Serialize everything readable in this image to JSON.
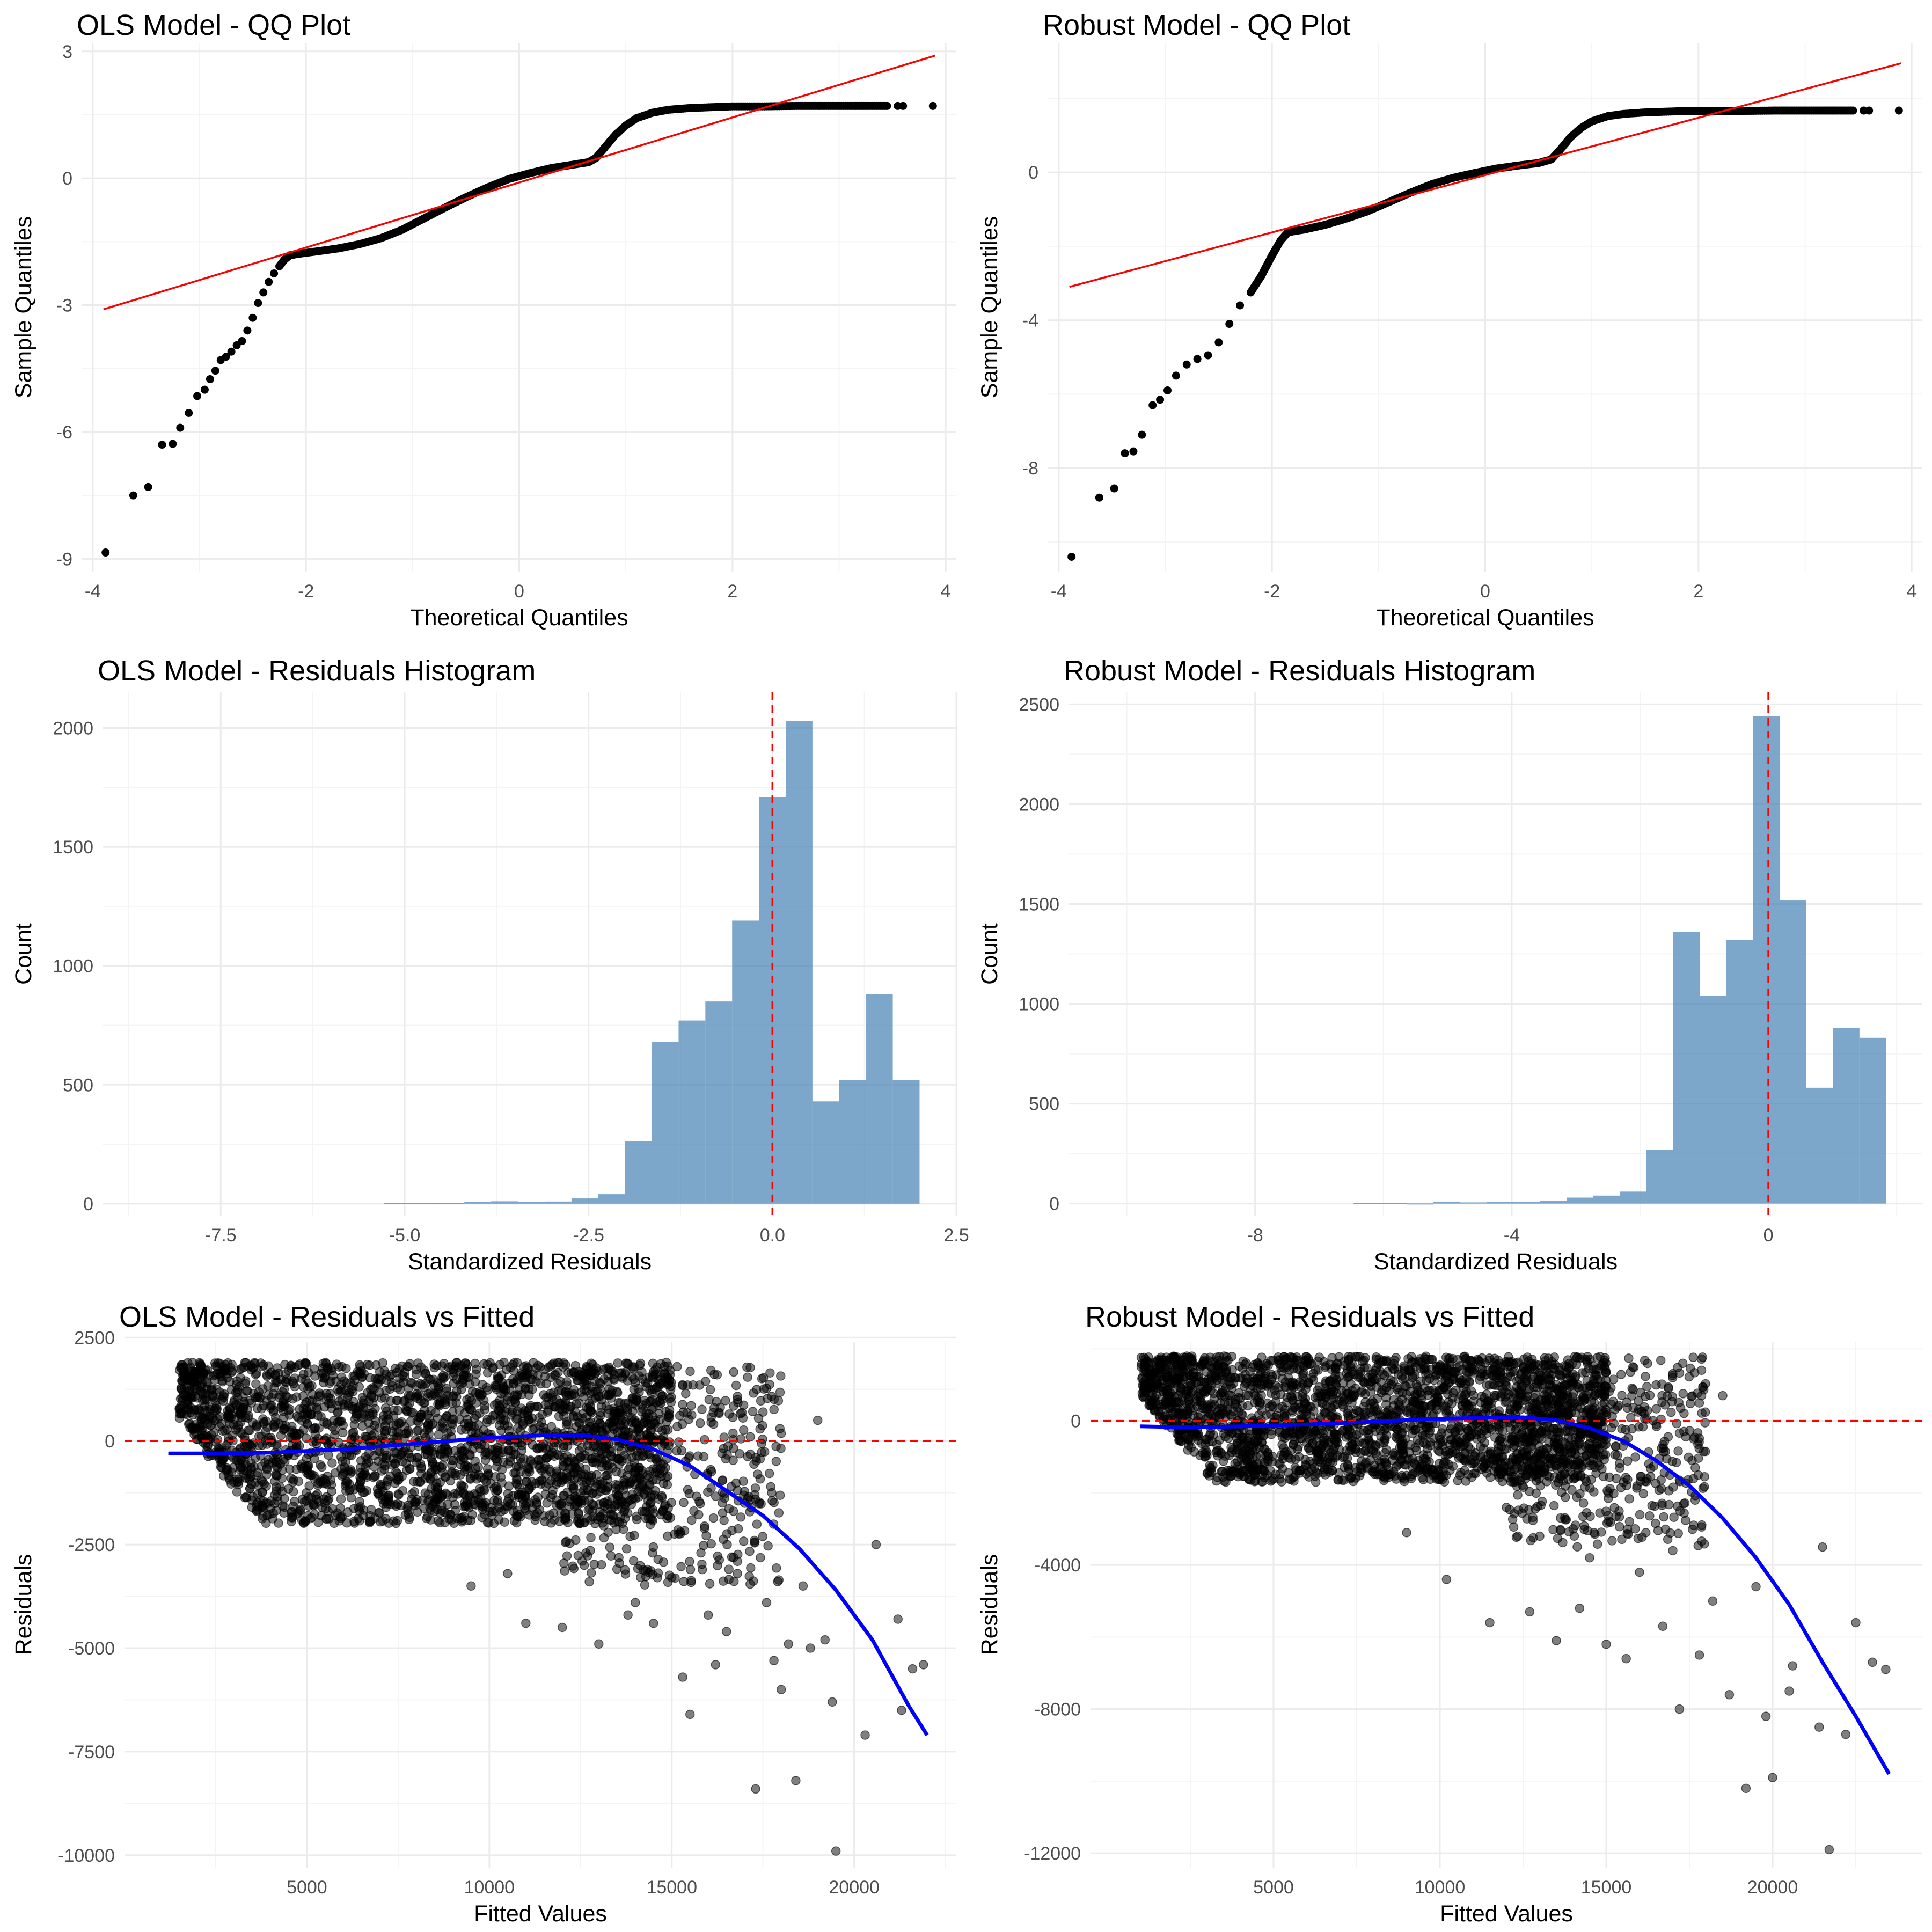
{
  "colors": {
    "background": "#ffffff",
    "grid_major": "#ebebeb",
    "grid_minor": "#f4f4f4",
    "points": "#000000",
    "reference_line": "#ff0000",
    "histogram_fill": "#4682b4",
    "smooth_line": "#0000ff"
  },
  "chart_data": [
    {
      "id": "ols_qq",
      "type": "scatter",
      "title": "OLS Model - QQ Plot",
      "xlabel": "Theoretical Quantiles",
      "ylabel": "Sample Quantiles",
      "xlim": [
        -4.1,
        4.1
      ],
      "ylim": [
        -9.3,
        3.2
      ],
      "x_ticks": [
        -4,
        -2,
        0,
        2,
        4
      ],
      "x_tick_labels": [
        "-4",
        "-2",
        "0",
        "2",
        "4"
      ],
      "y_ticks": [
        -9,
        -6,
        -3,
        0,
        3
      ],
      "y_tick_labels": [
        "-9",
        "-6",
        "-3",
        "0",
        "3"
      ],
      "reference_line": {
        "x": [
          -3.9,
          3.9
        ],
        "y": [
          -3.1,
          2.9
        ],
        "color": "#ff0000"
      },
      "points": [
        [
          -3.88,
          -8.85
        ],
        [
          -3.62,
          -7.5
        ],
        [
          -3.48,
          -7.3
        ],
        [
          -3.35,
          -6.3
        ],
        [
          -3.25,
          -6.28
        ],
        [
          -3.18,
          -5.9
        ],
        [
          -3.1,
          -5.55
        ],
        [
          -3.02,
          -5.15
        ],
        [
          -2.95,
          -5.0
        ],
        [
          -2.9,
          -4.75
        ],
        [
          -2.85,
          -4.55
        ],
        [
          -2.8,
          -4.3
        ],
        [
          -2.75,
          -4.22
        ],
        [
          -2.7,
          -4.1
        ],
        [
          -2.65,
          -3.95
        ],
        [
          -2.6,
          -3.85
        ],
        [
          -2.55,
          -3.6
        ],
        [
          -2.5,
          -3.3
        ],
        [
          -2.45,
          -2.95
        ],
        [
          -2.4,
          -2.7
        ],
        [
          -2.35,
          -2.45
        ],
        [
          -2.3,
          -2.25
        ],
        [
          -2.25,
          -2.08
        ],
        [
          -2.2,
          -1.92
        ],
        [
          -2.15,
          -1.82
        ],
        [
          -2.05,
          -1.78
        ],
        [
          -1.9,
          -1.73
        ],
        [
          -1.7,
          -1.66
        ],
        [
          -1.5,
          -1.56
        ],
        [
          -1.3,
          -1.42
        ],
        [
          -1.1,
          -1.22
        ],
        [
          -0.9,
          -0.96
        ],
        [
          -0.7,
          -0.7
        ],
        [
          -0.5,
          -0.45
        ],
        [
          -0.3,
          -0.22
        ],
        [
          -0.1,
          -0.02
        ],
        [
          0.1,
          0.12
        ],
        [
          0.3,
          0.24
        ],
        [
          0.5,
          0.32
        ],
        [
          0.65,
          0.38
        ],
        [
          0.72,
          0.48
        ],
        [
          0.8,
          0.72
        ],
        [
          0.9,
          1.02
        ],
        [
          1.0,
          1.25
        ],
        [
          1.1,
          1.42
        ],
        [
          1.25,
          1.55
        ],
        [
          1.4,
          1.62
        ],
        [
          1.6,
          1.66
        ],
        [
          1.8,
          1.68
        ],
        [
          2.0,
          1.7
        ],
        [
          2.3,
          1.7
        ],
        [
          2.6,
          1.71
        ],
        [
          2.9,
          1.71
        ],
        [
          3.1,
          1.71
        ],
        [
          3.25,
          1.71
        ],
        [
          3.35,
          1.71
        ],
        [
          3.45,
          1.71
        ],
        [
          3.55,
          1.71
        ],
        [
          3.6,
          1.71
        ],
        [
          3.88,
          1.71
        ]
      ]
    },
    {
      "id": "robust_qq",
      "type": "scatter",
      "title": "Robust Model - QQ Plot",
      "xlabel": "Theoretical Quantiles",
      "ylabel": "Sample Quantiles",
      "xlim": [
        -4.1,
        4.1
      ],
      "ylim": [
        -10.8,
        3.5
      ],
      "x_ticks": [
        -4,
        -2,
        0,
        2,
        4
      ],
      "x_tick_labels": [
        "-4",
        "-2",
        "0",
        "2",
        "4"
      ],
      "y_ticks": [
        -8,
        -4,
        0
      ],
      "y_tick_labels": [
        "-8",
        "-4",
        "0"
      ],
      "reference_line": {
        "x": [
          -3.9,
          3.9
        ],
        "y": [
          -3.1,
          2.95
        ],
        "color": "#ff0000"
      },
      "points": [
        [
          -3.88,
          -10.4
        ],
        [
          -3.62,
          -8.8
        ],
        [
          -3.48,
          -8.55
        ],
        [
          -3.38,
          -7.6
        ],
        [
          -3.3,
          -7.55
        ],
        [
          -3.22,
          -7.1
        ],
        [
          -3.12,
          -6.3
        ],
        [
          -3.05,
          -6.15
        ],
        [
          -2.98,
          -5.9
        ],
        [
          -2.9,
          -5.5
        ],
        [
          -2.8,
          -5.2
        ],
        [
          -2.7,
          -5.05
        ],
        [
          -2.6,
          -4.95
        ],
        [
          -2.5,
          -4.6
        ],
        [
          -2.4,
          -4.1
        ],
        [
          -2.3,
          -3.6
        ],
        [
          -2.2,
          -3.25
        ],
        [
          -2.1,
          -2.8
        ],
        [
          -2.0,
          -2.25
        ],
        [
          -1.92,
          -1.85
        ],
        [
          -1.85,
          -1.62
        ],
        [
          -1.7,
          -1.55
        ],
        [
          -1.5,
          -1.42
        ],
        [
          -1.3,
          -1.25
        ],
        [
          -1.1,
          -1.05
        ],
        [
          -0.9,
          -0.8
        ],
        [
          -0.7,
          -0.55
        ],
        [
          -0.5,
          -0.32
        ],
        [
          -0.3,
          -0.15
        ],
        [
          -0.1,
          -0.02
        ],
        [
          0.1,
          0.1
        ],
        [
          0.3,
          0.18
        ],
        [
          0.5,
          0.25
        ],
        [
          0.62,
          0.35
        ],
        [
          0.7,
          0.6
        ],
        [
          0.8,
          0.95
        ],
        [
          0.9,
          1.2
        ],
        [
          1.0,
          1.38
        ],
        [
          1.15,
          1.52
        ],
        [
          1.3,
          1.58
        ],
        [
          1.5,
          1.62
        ],
        [
          1.8,
          1.65
        ],
        [
          2.1,
          1.66
        ],
        [
          2.4,
          1.66
        ],
        [
          2.7,
          1.67
        ],
        [
          3.0,
          1.67
        ],
        [
          3.2,
          1.67
        ],
        [
          3.35,
          1.67
        ],
        [
          3.45,
          1.67
        ],
        [
          3.55,
          1.67
        ],
        [
          3.6,
          1.67
        ],
        [
          3.88,
          1.67
        ]
      ]
    },
    {
      "id": "ols_hist",
      "type": "bar",
      "title": "OLS Model - Residuals Histogram",
      "xlabel": "Standardized Residuals",
      "ylabel": "Count",
      "xlim": [
        -9.1,
        2.5
      ],
      "ylim": [
        -50,
        2150
      ],
      "x_ticks": [
        -7.5,
        -5.0,
        -2.5,
        0.0,
        2.5
      ],
      "x_tick_labels": [
        "-7.5",
        "-5.0",
        "-2.5",
        "0.0",
        "2.5"
      ],
      "y_ticks": [
        0,
        500,
        1000,
        1500,
        2000
      ],
      "y_tick_labels": [
        "0",
        "500",
        "1000",
        "1500",
        "2000"
      ],
      "bin_width": 0.364,
      "bin_starts": [
        -5.28,
        -4.916,
        -4.552,
        -4.188,
        -3.824,
        -3.46,
        -3.096,
        -2.732,
        -2.368,
        -2.004,
        -1.64,
        -1.276,
        -0.912,
        -0.548,
        -0.184,
        0.18,
        0.544,
        0.908,
        1.272,
        1.636
      ],
      "values": [
        2,
        2,
        3,
        8,
        10,
        7,
        9,
        22,
        40,
        263,
        680,
        770,
        850,
        1190,
        1710,
        2030,
        430,
        520,
        880,
        520
      ],
      "vline": {
        "x": 0,
        "color": "#ff0000",
        "style": "dashed"
      }
    },
    {
      "id": "robust_hist",
      "type": "bar",
      "title": "Robust Model - Residuals Histogram",
      "xlabel": "Standardized Residuals",
      "ylabel": "Count",
      "xlim": [
        -10.9,
        2.4
      ],
      "ylim": [
        -60,
        2560
      ],
      "x_ticks": [
        -8,
        -4,
        0
      ],
      "x_tick_labels": [
        "-8",
        "-4",
        "0"
      ],
      "y_ticks": [
        0,
        500,
        1000,
        1500,
        2000,
        2500
      ],
      "y_tick_labels": [
        "0",
        "500",
        "1000",
        "1500",
        "2000",
        "2500"
      ],
      "bin_width": 0.415,
      "bin_starts": [
        -6.465,
        -6.05,
        -5.635,
        -5.22,
        -4.805,
        -4.39,
        -3.975,
        -3.56,
        -3.145,
        -2.73,
        -2.315,
        -1.9,
        -1.485,
        -1.07,
        -0.655,
        -0.24,
        0.175,
        0.59,
        1.005,
        1.42
      ],
      "values": [
        2,
        2,
        1,
        10,
        6,
        8,
        10,
        15,
        30,
        40,
        60,
        270,
        1360,
        1040,
        1320,
        2440,
        1520,
        580,
        880,
        830
      ],
      "vline": {
        "x": 0,
        "color": "#ff0000",
        "style": "dashed"
      }
    },
    {
      "id": "ols_resid",
      "type": "scatter",
      "title": "OLS Model - Residuals vs Fitted",
      "xlabel": "Fitted Values",
      "ylabel": "Residuals",
      "xlim": [
        0,
        22800
      ],
      "ylim": [
        -10300,
        2400
      ],
      "x_ticks": [
        5000,
        10000,
        15000,
        20000
      ],
      "x_tick_labels": [
        "5000",
        "10000",
        "15000",
        "20000"
      ],
      "y_ticks": [
        -10000,
        -7500,
        -5000,
        -2500,
        0,
        2500
      ],
      "y_tick_labels": [
        "-10000",
        "-7500",
        "-5000",
        "-2500",
        "0",
        "2500"
      ],
      "hline": {
        "y": 0,
        "color": "#ff0000",
        "style": "dashed"
      },
      "band": {
        "x_min": 1500,
        "x_max": 15000,
        "upper": 1900,
        "lower_start": 500,
        "lower_floor": -2000
      },
      "smooth_line": {
        "x": [
          1200,
          2500,
          4000,
          6000,
          8000,
          10000,
          11500,
          12500,
          13500,
          14500,
          15500,
          16500,
          17500,
          18500,
          19500,
          20500,
          21500,
          22000
        ],
        "y": [
          -300,
          -300,
          -280,
          -200,
          -60,
          80,
          140,
          150,
          40,
          -200,
          -600,
          -1200,
          -1800,
          -2600,
          -3600,
          -4800,
          -6400,
          -7100
        ],
        "color": "#0000ff"
      },
      "outliers": [
        [
          9500,
          -3500
        ],
        [
          11000,
          -4400
        ],
        [
          12000,
          -4500
        ],
        [
          13000,
          -4900
        ],
        [
          14000,
          -3900
        ],
        [
          14500,
          -4400
        ],
        [
          15300,
          -5700
        ],
        [
          15500,
          -6600
        ],
        [
          16000,
          -4200
        ],
        [
          16800,
          -3200
        ],
        [
          17300,
          -8400
        ],
        [
          17800,
          -5300
        ],
        [
          18200,
          -4900
        ],
        [
          18400,
          -8200
        ],
        [
          19200,
          -4800
        ],
        [
          19500,
          -9900
        ],
        [
          20300,
          -7100
        ],
        [
          21300,
          -6500
        ],
        [
          21600,
          -5500
        ],
        [
          21900,
          -5400
        ],
        [
          20600,
          -2500
        ],
        [
          21200,
          -4300
        ],
        [
          18000,
          -6000
        ],
        [
          16500,
          -4600
        ],
        [
          15800,
          -2700
        ],
        [
          17000,
          -1500
        ],
        [
          18600,
          -3500
        ],
        [
          19400,
          -6300
        ],
        [
          12600,
          -3000
        ],
        [
          10500,
          -3200
        ],
        [
          13800,
          -4200
        ],
        [
          16200,
          -5400
        ],
        [
          17600,
          -3900
        ],
        [
          18800,
          -5000
        ],
        [
          15000,
          -3300
        ],
        [
          14200,
          1500
        ],
        [
          16800,
          1000
        ],
        [
          17500,
          700
        ],
        [
          19000,
          500
        ],
        [
          14800,
          1800
        ]
      ]
    },
    {
      "id": "robust_resid",
      "type": "scatter",
      "title": "Robust Model - Residuals vs Fitted",
      "xlabel": "Fitted Values",
      "ylabel": "Residuals",
      "xlim": [
        -500,
        24500
      ],
      "ylim": [
        -12400,
        2200
      ],
      "x_ticks": [
        5000,
        10000,
        15000,
        20000
      ],
      "x_tick_labels": [
        "5000",
        "10000",
        "15000",
        "20000"
      ],
      "y_ticks": [
        -12000,
        -8000,
        -4000,
        0
      ],
      "y_tick_labels": [
        "-12000",
        "-8000",
        "-4000",
        "0"
      ],
      "hline": {
        "y": 0,
        "color": "#ff0000",
        "style": "dashed"
      },
      "band": {
        "x_min": 1000,
        "x_max": 15000,
        "upper": 1800,
        "lower_start": 700,
        "lower_floor": -1700
      },
      "smooth_line": {
        "x": [
          1000,
          2500,
          4000,
          6000,
          8000,
          10000,
          11500,
          12500,
          13500,
          14500,
          15500,
          16500,
          17500,
          18500,
          19500,
          20500,
          21500,
          22500,
          23500
        ],
        "y": [
          -150,
          -180,
          -150,
          -100,
          -20,
          60,
          90,
          100,
          20,
          -200,
          -550,
          -1100,
          -1800,
          -2700,
          -3800,
          -5100,
          -6700,
          -8200,
          -9800
        ],
        "color": "#0000ff"
      },
      "outliers": [
        [
          9000,
          -3100
        ],
        [
          10200,
          -4400
        ],
        [
          11500,
          -5600
        ],
        [
          12700,
          -5300
        ],
        [
          13500,
          -6100
        ],
        [
          14200,
          -5200
        ],
        [
          15000,
          -6200
        ],
        [
          15600,
          -6600
        ],
        [
          16700,
          -5700
        ],
        [
          17200,
          -8000
        ],
        [
          17800,
          -6500
        ],
        [
          18700,
          -7600
        ],
        [
          19200,
          -10200
        ],
        [
          19800,
          -8200
        ],
        [
          20000,
          -9900
        ],
        [
          20500,
          -7500
        ],
        [
          21400,
          -8500
        ],
        [
          21500,
          -3500
        ],
        [
          21700,
          -11900
        ],
        [
          22500,
          -5600
        ],
        [
          23000,
          -6700
        ],
        [
          23400,
          -6900
        ],
        [
          13000,
          -3200
        ],
        [
          16000,
          -4200
        ],
        [
          18200,
          -5000
        ],
        [
          19500,
          -4600
        ],
        [
          14500,
          -3800
        ],
        [
          17000,
          -3600
        ],
        [
          20600,
          -6800
        ],
        [
          22200,
          -8700
        ],
        [
          12000,
          -2400
        ],
        [
          15300,
          -1600
        ],
        [
          16500,
          1000
        ],
        [
          17800,
          500
        ],
        [
          18500,
          700
        ],
        [
          15800,
          1500
        ]
      ]
    }
  ]
}
